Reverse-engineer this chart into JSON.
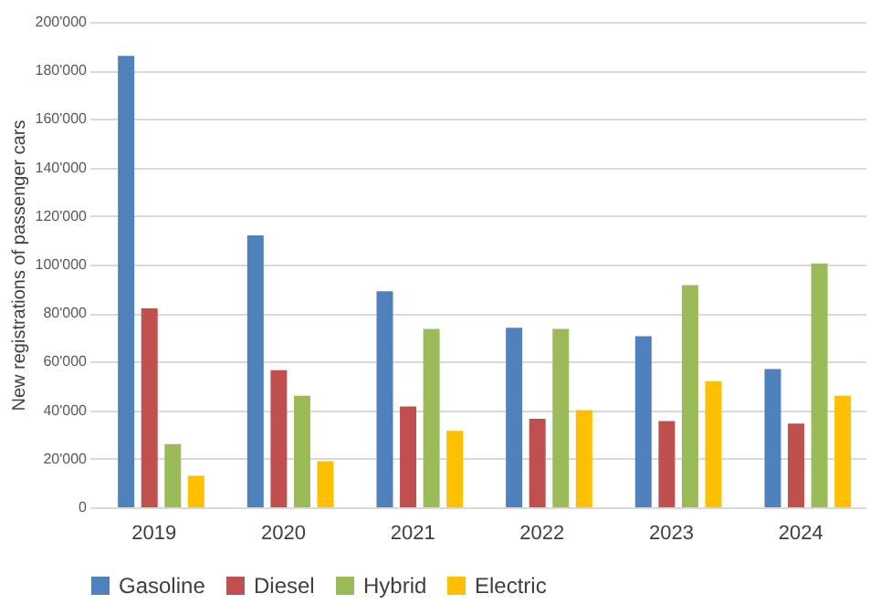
{
  "chart_data": {
    "type": "bar",
    "ylabel": "New registrations of passenger cars",
    "categories": [
      "2019",
      "2020",
      "2021",
      "2022",
      "2023",
      "2024"
    ],
    "series": [
      {
        "name": "Gasoline",
        "color": "#4f81bd",
        "values": [
          186000,
          112000,
          89000,
          74000,
          70500,
          57000
        ]
      },
      {
        "name": "Diesel",
        "color": "#c0504d",
        "values": [
          82000,
          56500,
          41500,
          36500,
          35500,
          34500
        ]
      },
      {
        "name": "Hybrid",
        "color": "#9bbb59",
        "values": [
          26000,
          46000,
          73500,
          73500,
          91500,
          100500
        ]
      },
      {
        "name": "Electric",
        "color": "#ffc000",
        "values": [
          13000,
          19000,
          31500,
          40000,
          52000,
          46000
        ]
      }
    ],
    "ylim": [
      0,
      200000
    ],
    "yticks": [
      {
        "value": 0,
        "label": "0"
      },
      {
        "value": 20000,
        "label": "20'000"
      },
      {
        "value": 40000,
        "label": "40'000"
      },
      {
        "value": 60000,
        "label": "60'000"
      },
      {
        "value": 80000,
        "label": "80'000"
      },
      {
        "value": 100000,
        "label": "100'000"
      },
      {
        "value": 120000,
        "label": "120'000"
      },
      {
        "value": 140000,
        "label": "140'000"
      },
      {
        "value": 160000,
        "label": "160'000"
      },
      {
        "value": 180000,
        "label": "180'000"
      },
      {
        "value": 200000,
        "label": "200'000"
      }
    ],
    "grid": "y",
    "legend": "bottom"
  }
}
